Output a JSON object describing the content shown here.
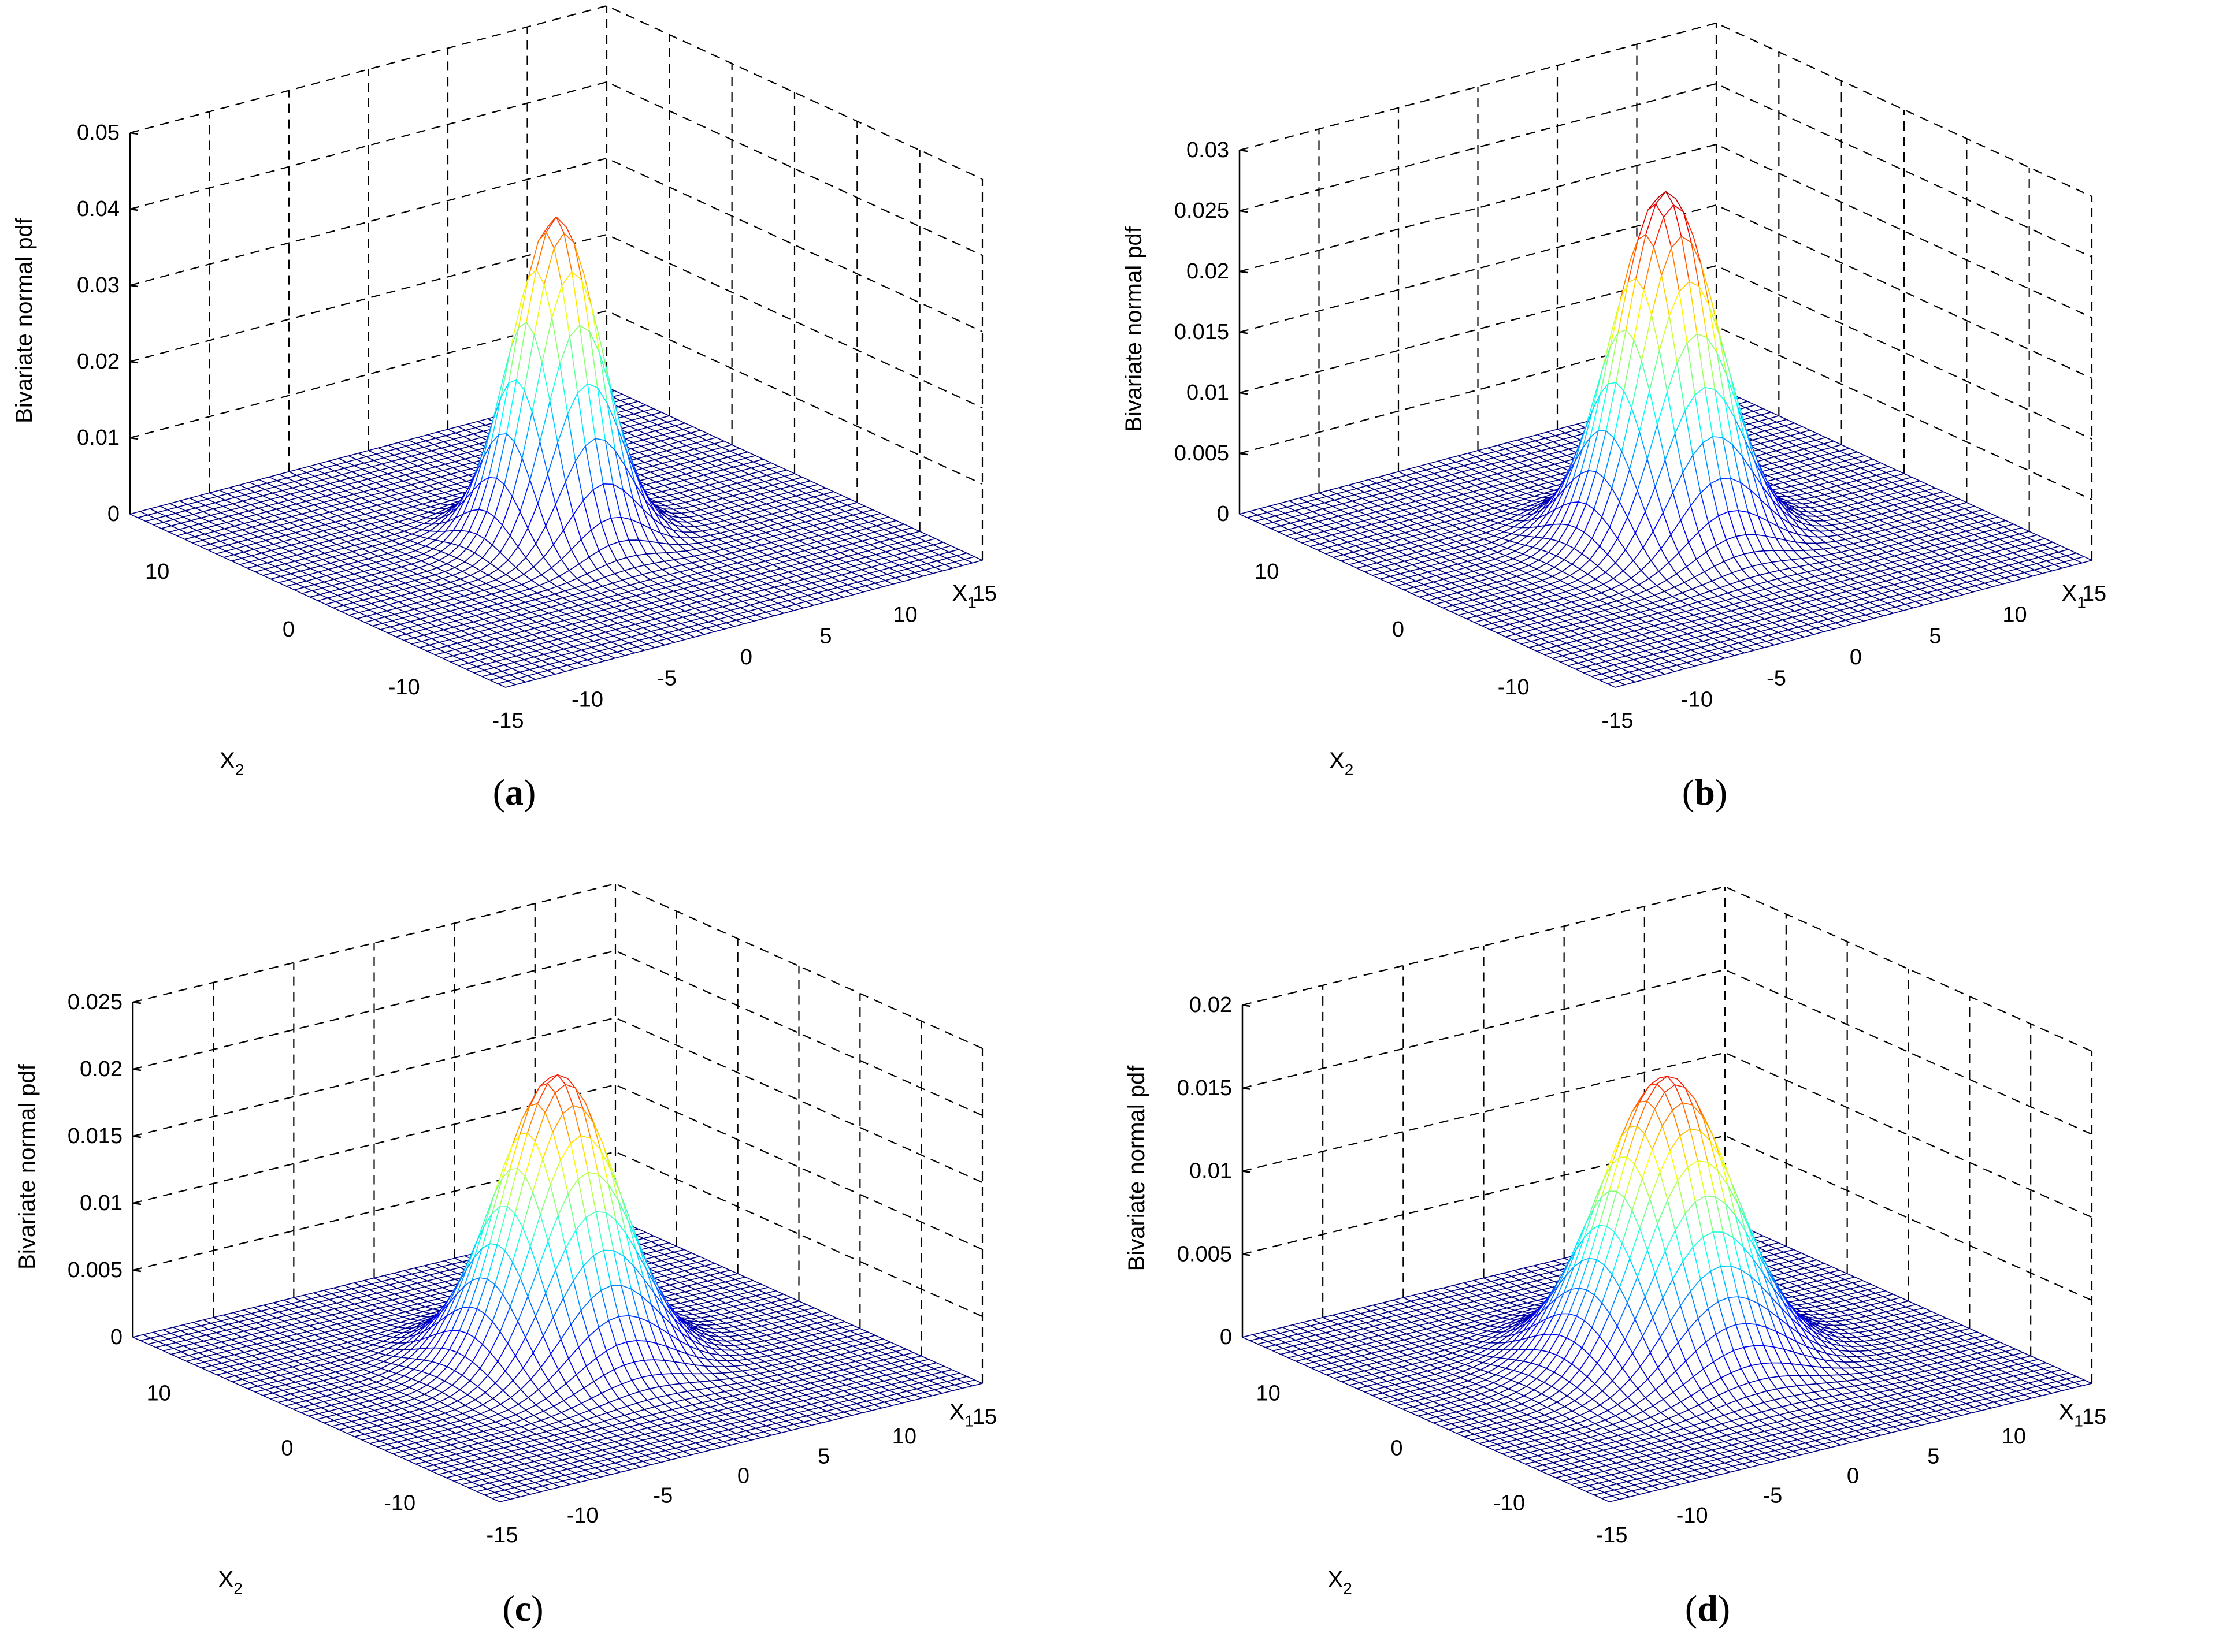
{
  "chart_data": [
    {
      "type": "surface",
      "panel": "a",
      "caption_letter": "a",
      "zlabel": "Bivariate normal pdf",
      "x1label": "X",
      "x1sub": "1",
      "x2label": "X",
      "x2sub": "2",
      "x1ticks": [
        "-15",
        "-10",
        "-5",
        "0",
        "5",
        "10",
        "15"
      ],
      "x2ticks": [
        "-10",
        "0",
        "10"
      ],
      "zticks": [
        "0",
        "0.01",
        "0.02",
        "0.03",
        "0.04",
        "0.05"
      ],
      "zlim": [
        0,
        0.05
      ],
      "xlim": [
        -15,
        15
      ],
      "ylim": [
        -15,
        15
      ],
      "peak": 0.042,
      "sigma": 2.2,
      "colormap": "jet"
    },
    {
      "type": "surface",
      "panel": "b",
      "caption_letter": "b",
      "zlabel": "Bivariate normal pdf",
      "x1label": "X",
      "x1sub": "1",
      "x2label": "X",
      "x2sub": "2",
      "x1ticks": [
        "-15",
        "-10",
        "-5",
        "0",
        "5",
        "10",
        "15"
      ],
      "x2ticks": [
        "-10",
        "0",
        "10"
      ],
      "zticks": [
        "0",
        "0.005",
        "0.01",
        "0.015",
        "0.02",
        "0.025",
        "0.03"
      ],
      "zlim": [
        0,
        0.03
      ],
      "xlim": [
        -15,
        15
      ],
      "ylim": [
        -15,
        15
      ],
      "peak": 0.0285,
      "sigma": 2.6,
      "colormap": "jet"
    },
    {
      "type": "surface",
      "panel": "c",
      "caption_letter": "c",
      "zlabel": "Bivariate normal pdf",
      "x1label": "X",
      "x1sub": "1",
      "x2label": "X",
      "x2sub": "2",
      "x1ticks": [
        "-15",
        "-10",
        "-5",
        "0",
        "5",
        "10",
        "15"
      ],
      "x2ticks": [
        "-10",
        "0",
        "10"
      ],
      "zticks": [
        "0",
        "0.005",
        "0.01",
        "0.015",
        "0.02",
        "0.025"
      ],
      "zlim": [
        0,
        0.025
      ],
      "xlim": [
        -15,
        15
      ],
      "ylim": [
        -15,
        15
      ],
      "peak": 0.0213,
      "sigma": 3.0,
      "colormap": "jet"
    },
    {
      "type": "surface",
      "panel": "d",
      "caption_letter": "d",
      "zlabel": "Bivariate normal pdf",
      "x1label": "X",
      "x1sub": "1",
      "x2label": "X",
      "x2sub": "2",
      "x1ticks": [
        "-15",
        "-10",
        "-5",
        "0",
        "5",
        "10",
        "15"
      ],
      "x2ticks": [
        "-10",
        "0",
        "10"
      ],
      "zticks": [
        "0",
        "0.005",
        "0.01",
        "0.015",
        "0.02"
      ],
      "zlim": [
        0,
        0.02
      ],
      "xlim": [
        -15,
        15
      ],
      "ylim": [
        -15,
        15
      ],
      "peak": 0.0171,
      "sigma": 3.3,
      "colormap": "jet"
    }
  ]
}
